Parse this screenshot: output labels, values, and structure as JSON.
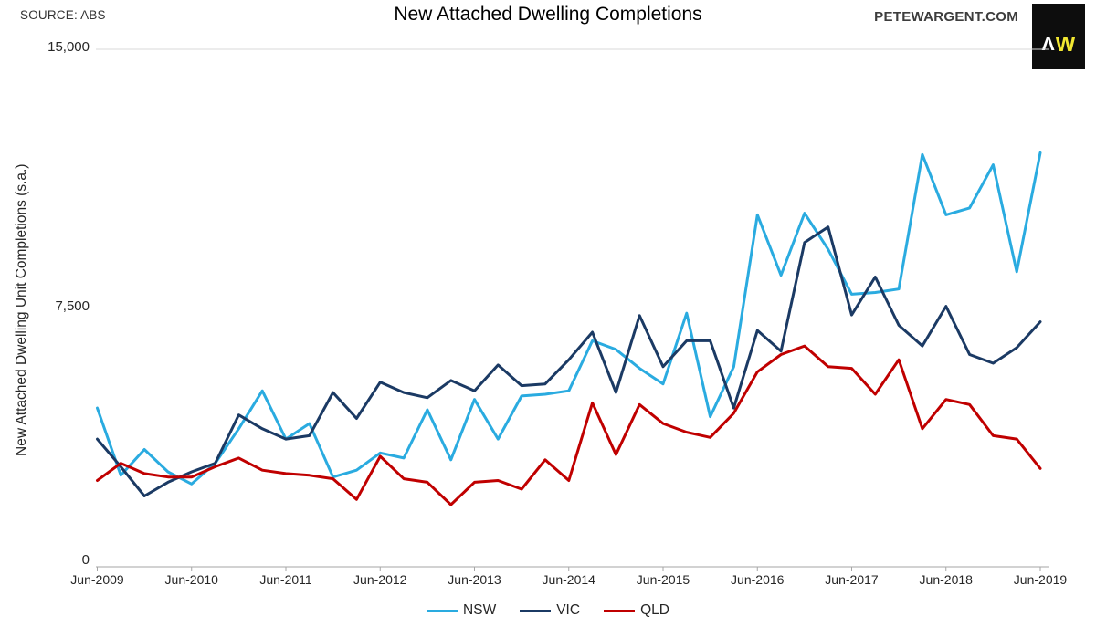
{
  "page": {
    "source_label": "SOURCE: ABS",
    "site_label": "PETEWARGENT.COM",
    "logo": {
      "letter_a": "Λ",
      "letter_w": "W",
      "background": "#0d0d0d",
      "letter_a_color": "#ffffff",
      "letter_w_color": "#f2e731"
    }
  },
  "chart_data": {
    "type": "line",
    "title": "New Attached Dwelling Completions",
    "ylabel": "New Attached Dwelling Unit Completions (s.a.)",
    "xlabel": "",
    "ylim": [
      0,
      15000
    ],
    "grid": "horizontal-only",
    "legend_position": "bottom",
    "x_label_every": 4,
    "y_ticks": [
      {
        "value": 0,
        "label": "0"
      },
      {
        "value": 7500,
        "label": "7,500"
      },
      {
        "value": 15000,
        "label": "15,000"
      }
    ],
    "axis_color": "#a6a6a6",
    "gridline_color": "#d9d9d9",
    "categories": [
      "Jun-2009",
      "Sep-2009",
      "Dec-2009",
      "Mar-2010",
      "Jun-2010",
      "Sep-2010",
      "Dec-2010",
      "Mar-2011",
      "Jun-2011",
      "Sep-2011",
      "Dec-2011",
      "Mar-2012",
      "Jun-2012",
      "Sep-2012",
      "Dec-2012",
      "Mar-2013",
      "Jun-2013",
      "Sep-2013",
      "Dec-2013",
      "Mar-2014",
      "Jun-2014",
      "Sep-2014",
      "Dec-2014",
      "Mar-2015",
      "Jun-2015",
      "Sep-2015",
      "Dec-2015",
      "Mar-2016",
      "Jun-2016",
      "Sep-2016",
      "Dec-2016",
      "Mar-2017",
      "Jun-2017",
      "Sep-2017",
      "Dec-2017",
      "Mar-2018",
      "Jun-2018",
      "Sep-2018",
      "Dec-2018",
      "Mar-2019",
      "Jun-2019"
    ],
    "series": [
      {
        "name": "NSW",
        "color": "#2aabe0",
        "values": [
          4600,
          2650,
          3400,
          2750,
          2400,
          3000,
          4000,
          5100,
          3700,
          4150,
          2600,
          2800,
          3300,
          3150,
          4550,
          3100,
          4850,
          3700,
          4950,
          5000,
          5100,
          6550,
          6300,
          5750,
          5300,
          7350,
          4350,
          5800,
          10200,
          8450,
          10250,
          9200,
          7900,
          7950,
          8050,
          11950,
          10200,
          10400,
          11650,
          8550,
          12000
        ]
      },
      {
        "name": "VIC",
        "color": "#1b3a64",
        "values": [
          3700,
          2900,
          2050,
          2450,
          2750,
          3000,
          4400,
          4000,
          3700,
          3800,
          5050,
          4300,
          5350,
          5050,
          4900,
          5400,
          5100,
          5850,
          5250,
          5300,
          6000,
          6800,
          5050,
          7280,
          5800,
          6550,
          6550,
          4600,
          6850,
          6250,
          9400,
          9850,
          7300,
          8400,
          7000,
          6400,
          7550,
          6150,
          5900,
          6350,
          7100
        ]
      },
      {
        "name": "QLD",
        "color": "#c00000",
        "values": [
          2500,
          3000,
          2700,
          2600,
          2600,
          2900,
          3150,
          2800,
          2700,
          2650,
          2550,
          1950,
          3200,
          2550,
          2450,
          1800,
          2450,
          2500,
          2250,
          3100,
          2500,
          4750,
          3250,
          4700,
          4150,
          3900,
          3750,
          4450,
          5650,
          6150,
          6400,
          5800,
          5750,
          5000,
          6000,
          4000,
          4850,
          4700,
          3800,
          3700,
          2850
        ]
      }
    ]
  }
}
